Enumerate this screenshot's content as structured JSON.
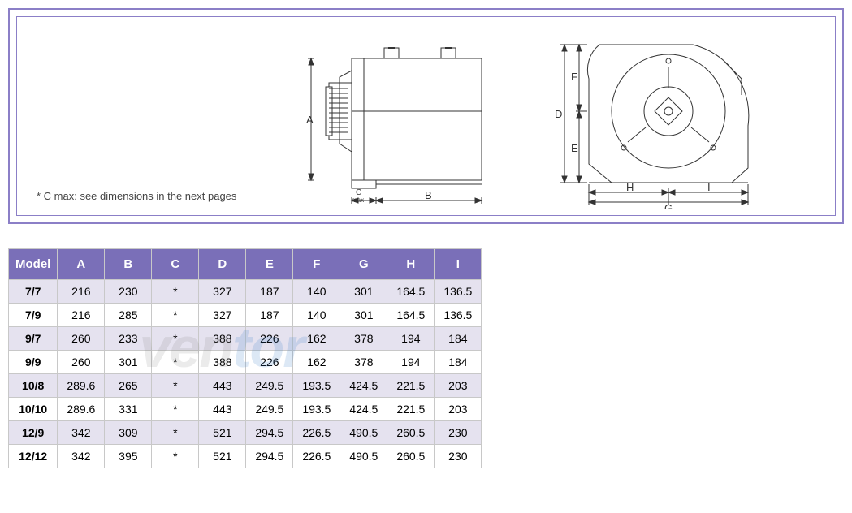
{
  "diagram": {
    "note": "* C max: see dimensions in the next pages",
    "label_A": "A",
    "label_B": "B",
    "label_Cmax": "C\nmax",
    "label_D": "D",
    "label_E": "E",
    "label_F": "F",
    "label_G": "G",
    "label_H": "H",
    "label_I": "I"
  },
  "table": {
    "headers": [
      "Model",
      "A",
      "B",
      "C",
      "D",
      "E",
      "F",
      "G",
      "H",
      "I"
    ],
    "rows": [
      [
        "7/7",
        "216",
        "230",
        "*",
        "327",
        "187",
        "140",
        "301",
        "164.5",
        "136.5"
      ],
      [
        "7/9",
        "216",
        "285",
        "*",
        "327",
        "187",
        "140",
        "301",
        "164.5",
        "136.5"
      ],
      [
        "9/7",
        "260",
        "233",
        "*",
        "388",
        "226",
        "162",
        "378",
        "194",
        "184"
      ],
      [
        "9/9",
        "260",
        "301",
        "*",
        "388",
        "226",
        "162",
        "378",
        "194",
        "184"
      ],
      [
        "10/8",
        "289.6",
        "265",
        "*",
        "443",
        "249.5",
        "193.5",
        "424.5",
        "221.5",
        "203"
      ],
      [
        "10/10",
        "289.6",
        "331",
        "*",
        "443",
        "249.5",
        "193.5",
        "424.5",
        "221.5",
        "203"
      ],
      [
        "12/9",
        "342",
        "309",
        "*",
        "521",
        "294.5",
        "226.5",
        "490.5",
        "260.5",
        "230"
      ],
      [
        "12/12",
        "342",
        "395",
        "*",
        "521",
        "294.5",
        "226.5",
        "490.5",
        "260.5",
        "230"
      ]
    ]
  },
  "watermark": {
    "part1": "ven",
    "part2": "tor"
  },
  "colors": {
    "frame_border": "#8b7fc7",
    "table_header_bg": "#7a6fb8",
    "table_header_fg": "#ffffff",
    "row_alt_bg": "#e5e2ef",
    "cell_border": "#c8c8c8"
  }
}
